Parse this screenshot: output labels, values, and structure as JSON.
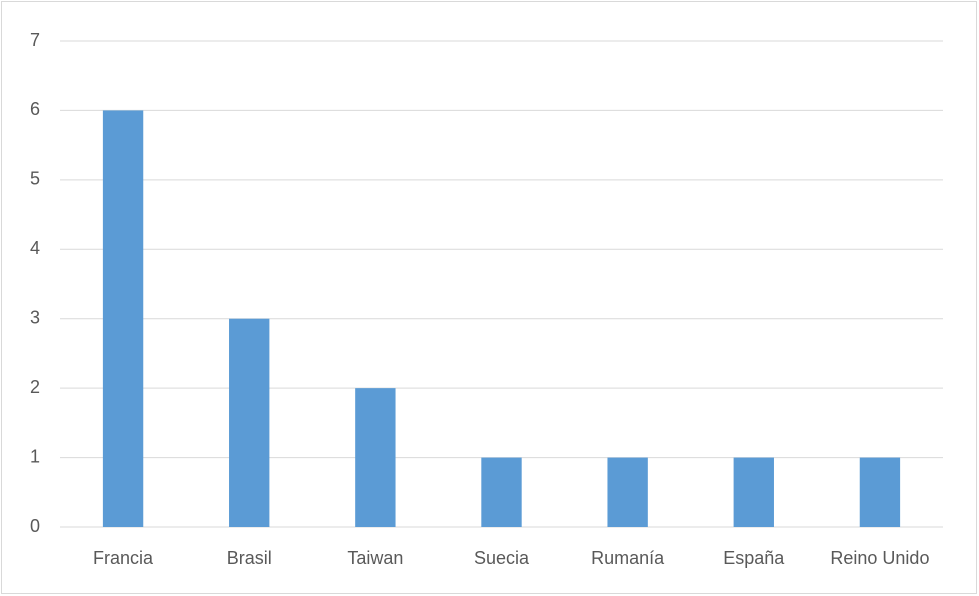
{
  "chart_data": {
    "type": "bar",
    "categories": [
      "Francia",
      "Brasil",
      "Taiwan",
      "Suecia",
      "Rumanía",
      "España",
      "Reino Unido"
    ],
    "values": [
      6,
      3,
      2,
      1,
      1,
      1,
      1
    ],
    "color": "#5b9bd5",
    "ylim": [
      0,
      7
    ],
    "yticks": [
      0,
      1,
      2,
      3,
      4,
      5,
      6,
      7
    ],
    "grid": true
  }
}
